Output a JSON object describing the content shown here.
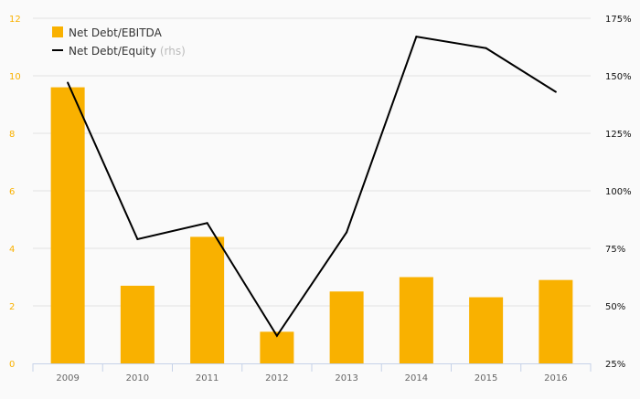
{
  "chart_data": {
    "type": "bar",
    "title": "",
    "categories": [
      "2009",
      "2010",
      "2011",
      "2012",
      "2013",
      "2014",
      "2015",
      "2016"
    ],
    "series": [
      {
        "name": "Net Debt/EBITDA",
        "type": "bar",
        "axis": "left",
        "color": "#f9b100",
        "values": [
          9.6,
          2.7,
          4.4,
          1.1,
          2.5,
          3.0,
          2.3,
          2.9
        ]
      },
      {
        "name": "Net Debt/Equity",
        "name_suffix": "(rhs)",
        "type": "line",
        "axis": "right",
        "color": "#000000",
        "values": [
          147,
          79,
          86,
          37,
          82,
          167,
          162,
          143
        ]
      }
    ],
    "left_axis": {
      "ylim": [
        0,
        12
      ],
      "ticks": [
        "0",
        "2",
        "4",
        "6",
        "8",
        "10",
        "12"
      ],
      "color": "#f9b100"
    },
    "right_axis": {
      "ylim": [
        25,
        175
      ],
      "ticks": [
        "25%",
        "50%",
        "75%",
        "100%",
        "125%",
        "150%",
        "175%"
      ]
    },
    "grid": true,
    "legend_position": "top-left"
  }
}
